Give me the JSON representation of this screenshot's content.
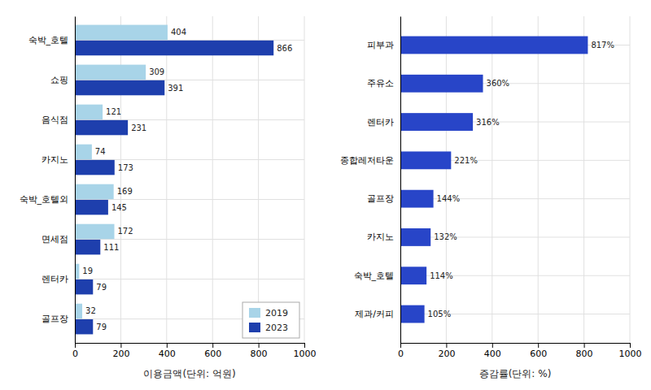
{
  "chart_data": [
    {
      "type": "bar",
      "orientation": "horizontal",
      "categories": [
        "숙박_호텔",
        "쇼핑",
        "음식점",
        "카지노",
        "숙박_호텔외",
        "면세점",
        "렌터카",
        "골프장"
      ],
      "series": [
        {
          "name": "2019",
          "color": "#a8d4e8",
          "values": [
            404,
            309,
            121,
            74,
            169,
            172,
            19,
            32
          ]
        },
        {
          "name": "2023",
          "color": "#1e3fad",
          "values": [
            866,
            391,
            231,
            173,
            145,
            111,
            79,
            79
          ]
        }
      ],
      "xlabel": "이용금액(단위: 억원)",
      "xlim": [
        0,
        1000
      ],
      "xticks": [
        0,
        200,
        400,
        600,
        800,
        1000
      ],
      "grid": true,
      "legend": "lower right",
      "data_labels": true
    },
    {
      "type": "bar",
      "orientation": "horizontal",
      "categories": [
        "피부과",
        "주유소",
        "렌터카",
        "종합레저타운",
        "골프장",
        "카지노",
        "숙박_호텔",
        "제과/커피"
      ],
      "values": [
        817,
        360,
        316,
        221,
        144,
        132,
        114,
        105
      ],
      "value_labels": [
        "817%",
        "360%",
        "316%",
        "221%",
        "144%",
        "132%",
        "114%",
        "105%"
      ],
      "color": "#2845c8",
      "xlabel": "증감률(단위: %)",
      "xlim": [
        0,
        1000
      ],
      "xticks": [
        0,
        200,
        400,
        600,
        800,
        1000
      ],
      "grid": true,
      "data_labels": true
    }
  ]
}
